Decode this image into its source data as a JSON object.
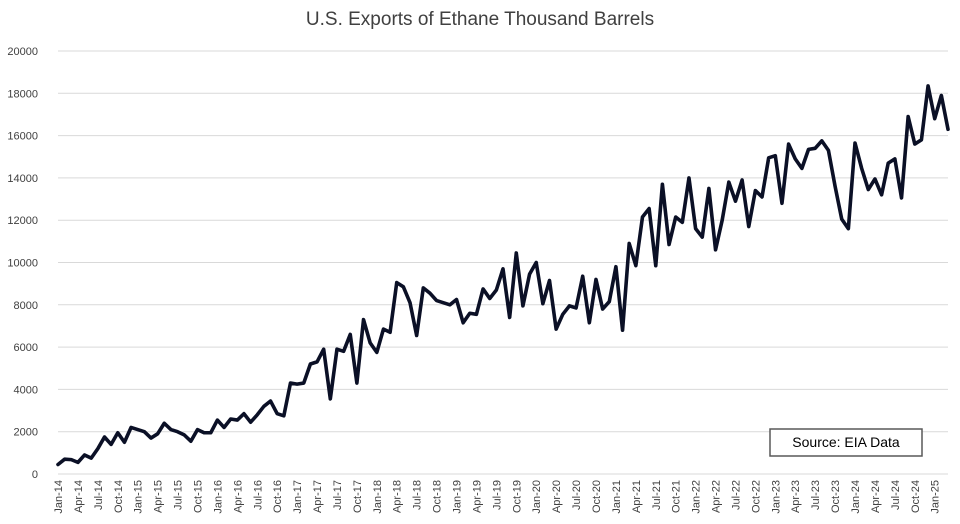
{
  "colors": {
    "series": "#0b1026",
    "grid": "#d9d9d9",
    "text": "#404040",
    "background": "#ffffff"
  },
  "chart_data": {
    "type": "line",
    "title": "U.S. Exports of Ethane Thousand Barrels",
    "xlabel": "",
    "ylabel": "",
    "ylim": [
      0,
      20000
    ],
    "y_ticks": [
      0,
      2000,
      4000,
      6000,
      8000,
      10000,
      12000,
      14000,
      16000,
      18000,
      20000
    ],
    "grid": "horizontal",
    "legend": "none",
    "annotation": "Source: EIA Data",
    "x_tick_labels": [
      "Jan-14",
      "Apr-14",
      "Jul-14",
      "Oct-14",
      "Jan-15",
      "Apr-15",
      "Jul-15",
      "Oct-15",
      "Jan-16",
      "Apr-16",
      "Jul-16",
      "Oct-16",
      "Jan-17",
      "Apr-17",
      "Jul-17",
      "Oct-17",
      "Jan-18",
      "Apr-18",
      "Jul-18",
      "Oct-18",
      "Jan-19",
      "Apr-19",
      "Jul-19",
      "Oct-19",
      "Jan-20",
      "Apr-20",
      "Jul-20",
      "Oct-20",
      "Jan-21",
      "Apr-21",
      "Jul-21",
      "Oct-21",
      "Jan-22",
      "Apr-22",
      "Jul-22",
      "Oct-22",
      "Jan-23",
      "Apr-23",
      "Jul-23",
      "Oct-23",
      "Jan-24",
      "Apr-24",
      "Jul-24",
      "Oct-24",
      "Jan-25"
    ],
    "x": [
      "Jan-14",
      "Feb-14",
      "Mar-14",
      "Apr-14",
      "May-14",
      "Jun-14",
      "Jul-14",
      "Aug-14",
      "Sep-14",
      "Oct-14",
      "Nov-14",
      "Dec-14",
      "Jan-15",
      "Feb-15",
      "Mar-15",
      "Apr-15",
      "May-15",
      "Jun-15",
      "Jul-15",
      "Aug-15",
      "Sep-15",
      "Oct-15",
      "Nov-15",
      "Dec-15",
      "Jan-16",
      "Feb-16",
      "Mar-16",
      "Apr-16",
      "May-16",
      "Jun-16",
      "Jul-16",
      "Aug-16",
      "Sep-16",
      "Oct-16",
      "Nov-16",
      "Dec-16",
      "Jan-17",
      "Feb-17",
      "Mar-17",
      "Apr-17",
      "May-17",
      "Jun-17",
      "Jul-17",
      "Aug-17",
      "Sep-17",
      "Oct-17",
      "Nov-17",
      "Dec-17",
      "Jan-18",
      "Feb-18",
      "Mar-18",
      "Apr-18",
      "May-18",
      "Jun-18",
      "Jul-18",
      "Aug-18",
      "Sep-18",
      "Oct-18",
      "Nov-18",
      "Dec-18",
      "Jan-19",
      "Feb-19",
      "Mar-19",
      "Apr-19",
      "May-19",
      "Jun-19",
      "Jul-19",
      "Aug-19",
      "Sep-19",
      "Oct-19",
      "Nov-19",
      "Dec-19",
      "Jan-20",
      "Feb-20",
      "Mar-20",
      "Apr-20",
      "May-20",
      "Jun-20",
      "Jul-20",
      "Aug-20",
      "Sep-20",
      "Oct-20",
      "Nov-20",
      "Dec-20",
      "Jan-21",
      "Feb-21",
      "Mar-21",
      "Apr-21",
      "May-21",
      "Jun-21",
      "Jul-21",
      "Aug-21",
      "Sep-21",
      "Oct-21",
      "Nov-21",
      "Dec-21",
      "Jan-22",
      "Feb-22",
      "Mar-22",
      "Apr-22",
      "May-22",
      "Jun-22",
      "Jul-22",
      "Aug-22",
      "Sep-22",
      "Oct-22",
      "Nov-22",
      "Dec-22",
      "Jan-23",
      "Feb-23",
      "Mar-23",
      "Apr-23",
      "May-23",
      "Jun-23",
      "Jul-23",
      "Aug-23",
      "Sep-23",
      "Oct-23",
      "Nov-23",
      "Dec-23",
      "Jan-24",
      "Feb-24",
      "Mar-24",
      "Apr-24",
      "May-24",
      "Jun-24",
      "Jul-24",
      "Aug-24",
      "Sep-24",
      "Oct-24",
      "Nov-24",
      "Dec-24",
      "Jan-25",
      "Feb-25",
      "Mar-25"
    ],
    "series": [
      {
        "values": [
          450,
          700,
          680,
          550,
          900,
          750,
          1200,
          1750,
          1400,
          1950,
          1500,
          2200,
          2100,
          2000,
          1700,
          1900,
          2400,
          2100,
          2000,
          1850,
          1550,
          2100,
          1950,
          1950,
          2550,
          2200,
          2600,
          2550,
          2850,
          2450,
          2800,
          3200,
          3450,
          2850,
          2750,
          4300,
          4250,
          4300,
          5200,
          5300,
          5900,
          3550,
          5900,
          5800,
          6600,
          4300,
          7300,
          6200,
          5750,
          6850,
          6700,
          9050,
          8850,
          8100,
          6550,
          8800,
          8550,
          8200,
          8100,
          8000,
          8250,
          7150,
          7600,
          7550,
          8750,
          8300,
          8700,
          9700,
          7400,
          10450,
          7950,
          9450,
          10000,
          8050,
          9150,
          6850,
          7550,
          7950,
          7850,
          9350,
          7150,
          9200,
          7800,
          8150,
          9800,
          6800,
          10900,
          9850,
          12150,
          12550,
          9850,
          13700,
          10850,
          12150,
          11900,
          14000,
          11600,
          11200,
          13500,
          10600,
          12000,
          13800,
          12900,
          13900,
          11700,
          13400,
          13100,
          14950,
          15050,
          12800,
          15600,
          14900,
          14450,
          15350,
          15400,
          15750,
          15300,
          13600,
          12050,
          11600,
          15650,
          14450,
          13450,
          13950,
          13200,
          14700,
          14900,
          13050,
          16900,
          15600,
          15800,
          18350,
          16800,
          17900,
          16300
        ]
      }
    ]
  }
}
